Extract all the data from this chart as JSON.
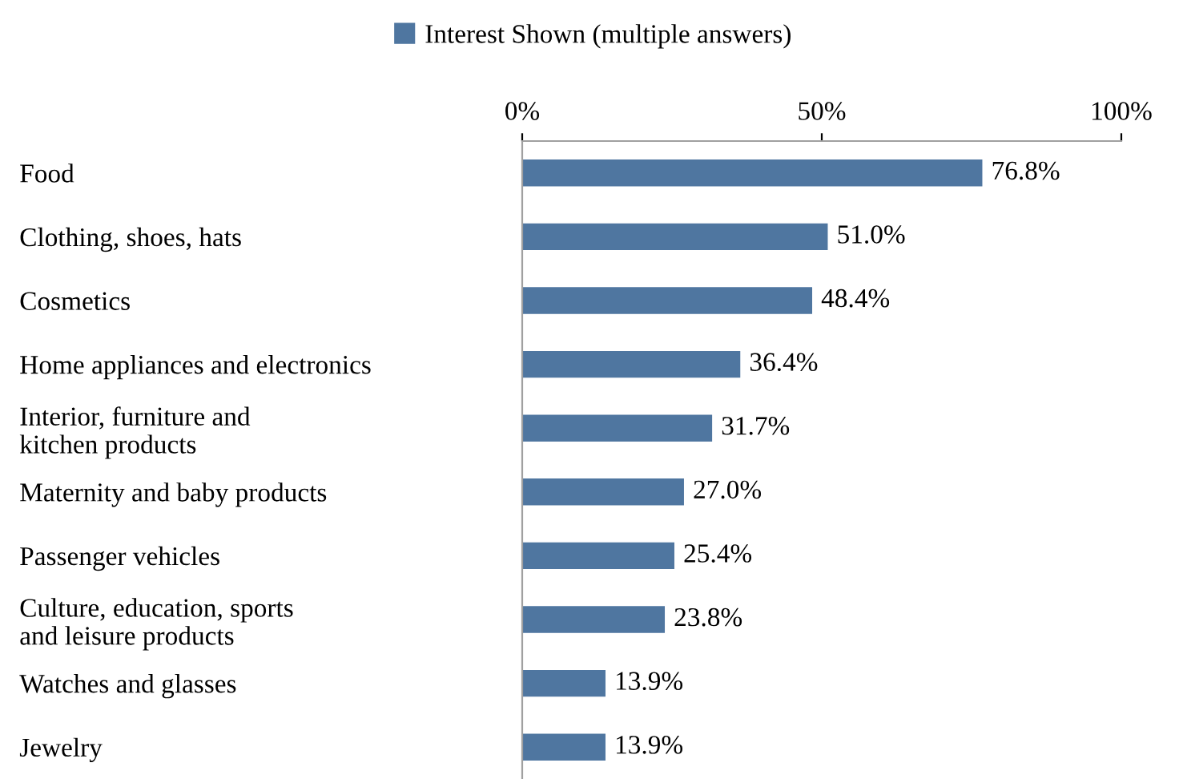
{
  "chart_data": {
    "type": "bar",
    "orientation": "horizontal",
    "categories": [
      "Food",
      "Clothing, shoes, hats",
      "Cosmetics",
      "Home appliances and electronics",
      "Interior, furniture and\nkitchen products",
      "Maternity and baby products",
      "Passenger vehicles",
      "Culture, education, sports\nand leisure products",
      "Watches and glasses",
      "Jewelry"
    ],
    "series": [
      {
        "name": "Interest Shown (multiple answers)",
        "color": "#4f76a0",
        "values": [
          76.8,
          51.0,
          48.4,
          36.4,
          31.7,
          27.0,
          25.4,
          23.8,
          13.9,
          13.9
        ],
        "value_labels": [
          "76.8%",
          "51.0%",
          "48.4%",
          "36.4%",
          "31.7%",
          "27.0%",
          "25.4%",
          "23.8%",
          "13.9%",
          "13.9%"
        ]
      }
    ],
    "xlim": [
      0,
      100
    ],
    "xticks": [
      {
        "value": 0,
        "label": "0%"
      },
      {
        "value": 50,
        "label": "50%"
      },
      {
        "value": 100,
        "label": "100%"
      }
    ],
    "legend": "top",
    "grid": false
  }
}
